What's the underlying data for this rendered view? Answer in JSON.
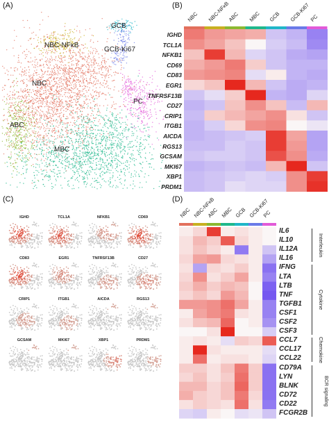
{
  "panels": {
    "a": {
      "label": "(A)"
    },
    "b": {
      "label": "(B)"
    },
    "c": {
      "label": "(C)"
    },
    "d": {
      "label": "(D)"
    }
  },
  "panel_a": {
    "clusters": [
      {
        "name": "NBC-NFκB",
        "color": "#c8b020"
      },
      {
        "name": "GCB",
        "color": "#1fb6c8"
      },
      {
        "name": "GCB-Ki67",
        "color": "#6a7ae8"
      },
      {
        "name": "NBC",
        "color": "#e2705c"
      },
      {
        "name": "PC",
        "color": "#e25ad8"
      },
      {
        "name": "ABC",
        "color": "#8cb830"
      },
      {
        "name": "MBC",
        "color": "#1fb88c"
      }
    ]
  },
  "panel_b": {
    "columns": [
      "NBC",
      "NBC-NFκB",
      "ABC",
      "MBC",
      "GCB",
      "GCB-Ki67",
      "PC"
    ],
    "column_colors": [
      "#e2705c",
      "#c8b020",
      "#8cb830",
      "#1fb88c",
      "#1fb6c8",
      "#6a7ae8",
      "#e25ad8"
    ],
    "rows": [
      "IGHD",
      "TCL1A",
      "NFKB1",
      "CD69",
      "CD83",
      "EGR1",
      "TNFRSF13B",
      "CD27",
      "CRIP1",
      "ITGB1",
      "AICDA",
      "RGS13",
      "GCSAM",
      "MKI67",
      "XBP1",
      "PRDM1"
    ],
    "values": [
      [
        1.2,
        0.9,
        0.8,
        0.7,
        -0.6,
        -0.8,
        -1.4
      ],
      [
        1.0,
        0.8,
        0.5,
        0.0,
        -0.5,
        -0.7,
        -1.3
      ],
      [
        0.5,
        1.8,
        0.6,
        -0.4,
        -0.6,
        -0.9,
        -1.0
      ],
      [
        0.7,
        0.9,
        1.2,
        0.4,
        -0.6,
        -0.8,
        -0.8
      ],
      [
        0.9,
        1.0,
        1.1,
        -0.3,
        0.1,
        -0.8,
        -0.9
      ],
      [
        0.3,
        0.5,
        2.0,
        0.6,
        -0.6,
        -0.9,
        -0.8
      ],
      [
        -0.6,
        -0.3,
        0.4,
        2.0,
        -0.8,
        -0.9,
        -0.4
      ],
      [
        -0.8,
        -0.6,
        0.5,
        1.0,
        0.5,
        -0.7,
        0.6
      ],
      [
        -0.7,
        0.4,
        0.6,
        0.8,
        1.0,
        0.2,
        -0.6
      ],
      [
        -0.8,
        -0.5,
        0.3,
        1.0,
        1.1,
        0.0,
        -0.2
      ],
      [
        -0.8,
        -0.7,
        -0.6,
        -0.5,
        1.8,
        0.8,
        -1.0
      ],
      [
        -0.7,
        -0.7,
        -0.5,
        -0.6,
        1.8,
        0.9,
        -1.0
      ],
      [
        -0.6,
        -0.5,
        -0.5,
        -0.6,
        1.6,
        1.0,
        -0.9
      ],
      [
        -0.8,
        -0.7,
        -0.6,
        -0.7,
        0.6,
        2.0,
        -0.6
      ],
      [
        -0.7,
        -0.6,
        -0.5,
        -0.4,
        -0.5,
        1.0,
        1.8
      ],
      [
        -0.7,
        -0.6,
        -0.3,
        -0.4,
        -0.4,
        1.0,
        1.9
      ]
    ]
  },
  "panel_c": {
    "genes": [
      "IGHD",
      "TCL1A",
      "NFKB1",
      "CD69",
      "CD83",
      "EGR1",
      "TNFRSF13B",
      "CD27",
      "CRIP1",
      "ITGB1",
      "AICDA",
      "RGS13",
      "GCSAM",
      "MKI67",
      "XBP1",
      "PRDM1"
    ],
    "intensity": [
      0.9,
      0.75,
      0.35,
      0.85,
      0.9,
      0.35,
      0.25,
      0.4,
      0.2,
      0.2,
      0.15,
      0.15,
      0.15,
      0.15,
      0.5,
      0.2
    ]
  },
  "panel_d": {
    "columns": [
      "NBC",
      "NBC-NFκB",
      "ABC",
      "MBC",
      "GCB",
      "GCB-Ki67",
      "PC"
    ],
    "column_colors": [
      "#e2705c",
      "#c8b020",
      "#8cb830",
      "#1fb88c",
      "#1fb6c8",
      "#6a7ae8",
      "#e25ad8"
    ],
    "rows": [
      "IL6",
      "IL10",
      "IL12A",
      "IL16",
      "IFNG",
      "LTA",
      "LTB",
      "TNF",
      "TGFB1",
      "CSF1",
      "CSF2",
      "CSF3",
      "CCL7",
      "CCL17",
      "CCL22",
      "CD79A",
      "LYN",
      "BLNK",
      "CD72",
      "CD22",
      "FCGR2B"
    ],
    "groups": [
      {
        "name": "Interleukin",
        "start": 0,
        "end": 3
      },
      {
        "name": "Cytokine",
        "start": 4,
        "end": 11
      },
      {
        "name": "Chemokine",
        "start": 12,
        "end": 14
      },
      {
        "name": "BCR signaling",
        "start": 15,
        "end": 20
      }
    ],
    "values": [
      [
        0.1,
        0.3,
        1.8,
        0.1,
        0.2,
        0.1,
        0.0
      ],
      [
        0.2,
        0.6,
        0.4,
        1.5,
        0.3,
        0.1,
        0.0
      ],
      [
        0.2,
        0.5,
        0.3,
        0.1,
        -1.5,
        0.1,
        -0.6
      ],
      [
        0.3,
        0.8,
        0.9,
        0.3,
        0.2,
        0.1,
        -1.0
      ],
      [
        0.2,
        -1.0,
        0.3,
        0.2,
        0.4,
        0.1,
        -1.6
      ],
      [
        0.3,
        1.0,
        0.2,
        0.4,
        0.8,
        0.1,
        -1.4
      ],
      [
        0.4,
        0.7,
        0.4,
        0.6,
        0.5,
        0.0,
        -1.8
      ],
      [
        0.3,
        0.5,
        0.3,
        0.9,
        0.6,
        0.0,
        -1.9
      ],
      [
        0.9,
        0.9,
        1.0,
        1.3,
        0.8,
        0.1,
        -1.4
      ],
      [
        0.1,
        0.8,
        1.0,
        1.2,
        0.2,
        0.1,
        -1.4
      ],
      [
        0.2,
        0.5,
        0.6,
        1.4,
        0.0,
        0.1,
        -1.2
      ],
      [
        0.0,
        0.0,
        0.2,
        2.0,
        0.0,
        0.0,
        -0.5
      ],
      [
        0.1,
        0.2,
        0.1,
        -0.3,
        0.4,
        0.3,
        1.5
      ],
      [
        0.1,
        2.0,
        0.2,
        0.1,
        0.1,
        0.1,
        -0.3
      ],
      [
        0.1,
        1.3,
        0.1,
        0.2,
        0.2,
        0.1,
        -0.4
      ],
      [
        0.4,
        0.4,
        0.2,
        0.5,
        1.2,
        0.4,
        -1.6
      ],
      [
        0.3,
        0.5,
        0.2,
        0.4,
        1.3,
        0.4,
        -1.6
      ],
      [
        0.6,
        0.6,
        0.3,
        0.5,
        1.4,
        0.4,
        -1.6
      ],
      [
        0.7,
        0.4,
        0.3,
        0.5,
        1.2,
        0.3,
        -1.6
      ],
      [
        0.2,
        0.4,
        0.3,
        0.2,
        1.3,
        0.2,
        -1.5
      ],
      [
        -0.4,
        -0.5,
        0.1,
        0.0,
        -0.3,
        -0.2,
        -0.6
      ]
    ]
  }
}
